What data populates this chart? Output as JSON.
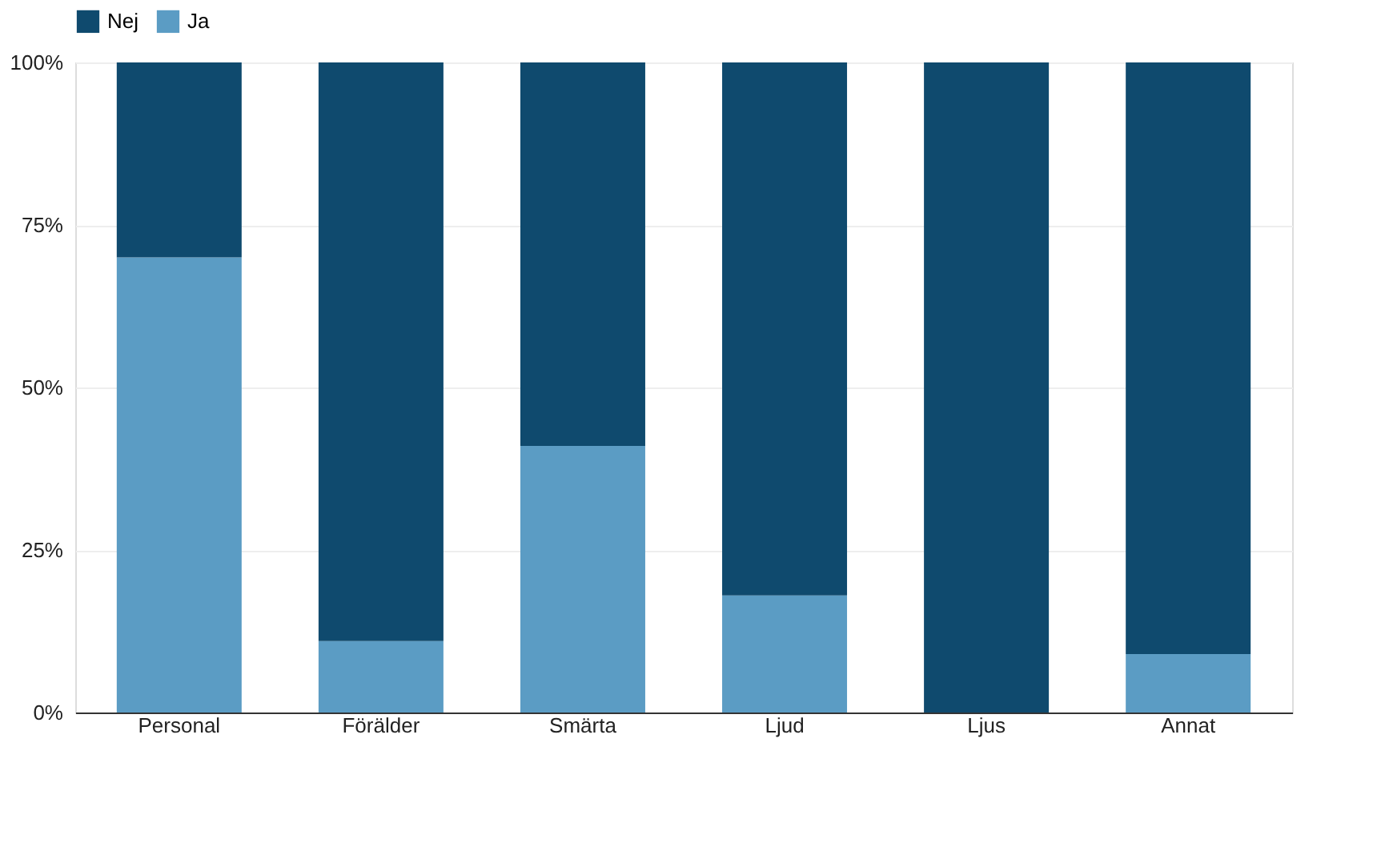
{
  "chart_data": {
    "type": "bar",
    "stacked": true,
    "categories": [
      "Personal",
      "Förälder",
      "Smärta",
      "Ljud",
      "Ljus",
      "Annat"
    ],
    "series": [
      {
        "name": "Ja",
        "color": "#5b9cc4",
        "values": [
          70,
          11,
          41,
          18,
          0,
          9
        ]
      },
      {
        "name": "Nej",
        "color": "#0f4a6e",
        "values": [
          30,
          89,
          59,
          82,
          100,
          91
        ]
      }
    ],
    "ylim": [
      0,
      100
    ],
    "yticks": [
      {
        "value": 0,
        "label": "0%"
      },
      {
        "value": 25,
        "label": "25%"
      },
      {
        "value": 50,
        "label": "50%"
      },
      {
        "value": 75,
        "label": "75%"
      },
      {
        "value": 100,
        "label": "100%"
      }
    ],
    "grid": "y",
    "legend": "top"
  }
}
